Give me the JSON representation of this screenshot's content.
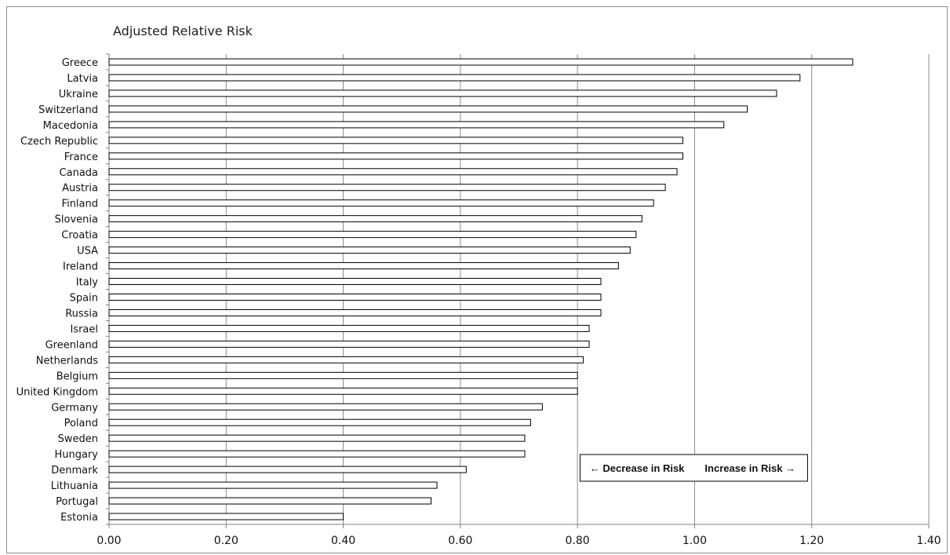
{
  "chart_data": {
    "type": "bar",
    "orientation": "horizontal",
    "title": "Adjusted Relative Risk",
    "categories": [
      "Greece",
      "Latvia",
      "Ukraine",
      "Switzerland",
      "Macedonia",
      "Czech Republic",
      "France",
      "Canada",
      "Austria",
      "Finland",
      "Slovenia",
      "Croatia",
      "USA",
      "Ireland",
      "Italy",
      "Spain",
      "Russia",
      "Israel",
      "Greenland",
      "Netherlands",
      "Belgium",
      "United Kingdom",
      "Germany",
      "Poland",
      "Sweden",
      "Hungary",
      "Denmark",
      "Lithuania",
      "Portugal",
      "Estonia"
    ],
    "values": [
      1.27,
      1.18,
      1.14,
      1.09,
      1.05,
      0.98,
      0.98,
      0.97,
      0.95,
      0.93,
      0.91,
      0.9,
      0.89,
      0.87,
      0.84,
      0.84,
      0.84,
      0.82,
      0.82,
      0.81,
      0.8,
      0.8,
      0.74,
      0.72,
      0.71,
      0.71,
      0.61,
      0.56,
      0.55,
      0.4
    ],
    "xlim": [
      0,
      1.4
    ],
    "xticks": [
      "0.00",
      "0.20",
      "0.40",
      "0.60",
      "0.80",
      "1.00",
      "1.20",
      "1.40"
    ],
    "grid": "vertical",
    "bar_fill": "#ffffff",
    "bar_stroke": "#000000",
    "annotation": {
      "left": "← Decrease in Risk",
      "right": "Increase in Risk →"
    }
  }
}
